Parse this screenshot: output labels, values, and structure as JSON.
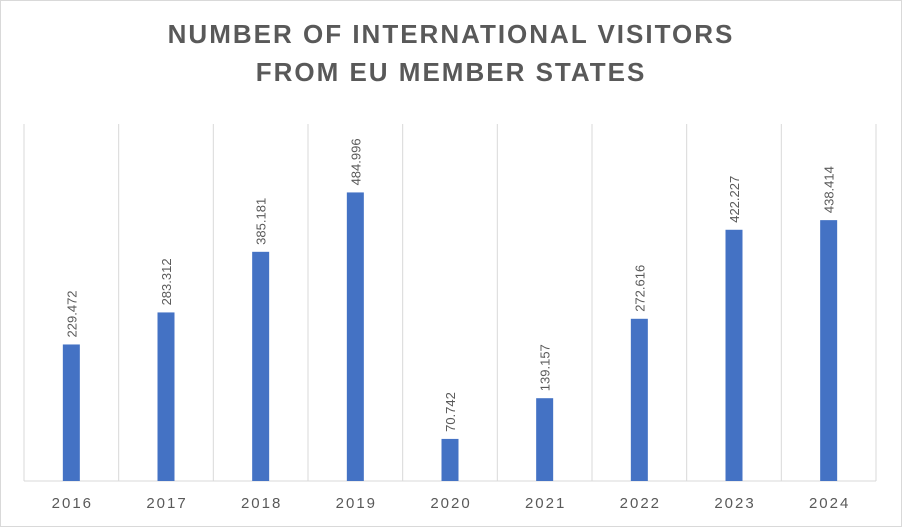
{
  "chart_data": {
    "type": "bar",
    "title_lines": [
      "NUMBER OF INTERNATIONAL VISITORS",
      "FROM EU MEMBER STATES"
    ],
    "categories": [
      "2016",
      "2017",
      "2018",
      "2019",
      "2020",
      "2021",
      "2022",
      "2023",
      "2024"
    ],
    "values": [
      229.472,
      283.312,
      385.181,
      484.996,
      70.742,
      139.157,
      272.616,
      422.227,
      438.414
    ],
    "data_labels": [
      "229.472",
      "283.312",
      "385.181",
      "484.996",
      "70.742",
      "139.157",
      "272.616",
      "422.227",
      "438.414"
    ],
    "ylim": [
      0,
      600
    ],
    "grid": "vertical",
    "legend": "none",
    "bar_color": "#4472C4",
    "grid_color": "#d9d9d9",
    "text_color": "#595959"
  }
}
